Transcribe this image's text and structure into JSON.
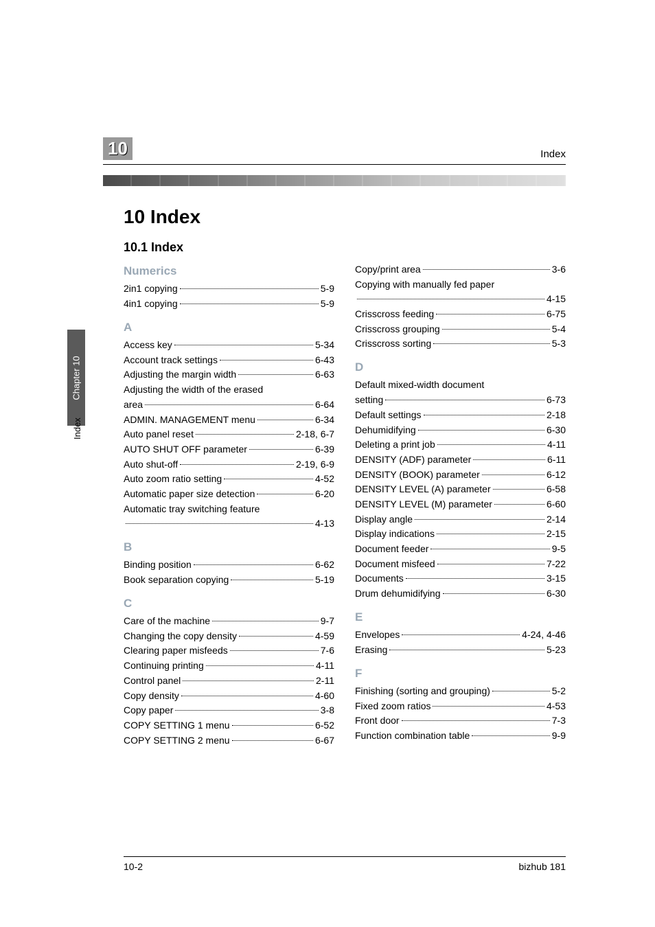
{
  "header": {
    "chapter_number": "10",
    "header_label": "Index"
  },
  "sidebar": {
    "tab_label": "Chapter 10",
    "side_label": "Index"
  },
  "title": "10    Index",
  "subtitle": "10.1    Index",
  "columns": {
    "left": [
      {
        "type": "head",
        "text": "Numerics"
      },
      {
        "type": "entry",
        "label": "2in1 copying",
        "page": "5-9"
      },
      {
        "type": "entry",
        "label": "4in1 copying",
        "page": "5-9"
      },
      {
        "type": "head",
        "text": "A"
      },
      {
        "type": "entry",
        "label": "Access key",
        "page": "5-34"
      },
      {
        "type": "entry",
        "label": "Account track settings",
        "page": "6-43"
      },
      {
        "type": "entry",
        "label": "Adjusting the margin width",
        "page": "6-63"
      },
      {
        "type": "wrap",
        "line1": "Adjusting the width of the erased",
        "line2label": "area",
        "page": "6-64"
      },
      {
        "type": "entry",
        "label": "ADMIN. MANAGEMENT menu",
        "page": "6-34"
      },
      {
        "type": "entry",
        "label": "Auto panel reset",
        "page": "2-18, 6-7"
      },
      {
        "type": "entry",
        "label": "AUTO SHUT OFF parameter",
        "page": "6-39"
      },
      {
        "type": "entry",
        "label": "Auto shut-off",
        "page": "2-19, 6-9"
      },
      {
        "type": "entry",
        "label": "Auto zoom ratio setting",
        "page": "4-52"
      },
      {
        "type": "entry",
        "label": "Automatic paper size detection",
        "page": "6-20"
      },
      {
        "type": "wrap",
        "line1": "Automatic tray switching feature",
        "line2label": "",
        "page": "4-13"
      },
      {
        "type": "head",
        "text": "B"
      },
      {
        "type": "entry",
        "label": "Binding position",
        "page": "6-62"
      },
      {
        "type": "entry",
        "label": "Book separation copying",
        "page": "5-19"
      },
      {
        "type": "head",
        "text": "C"
      },
      {
        "type": "entry",
        "label": "Care of the machine",
        "page": "9-7"
      },
      {
        "type": "entry",
        "label": "Changing the copy density",
        "page": "4-59"
      },
      {
        "type": "entry",
        "label": "Clearing paper misfeeds",
        "page": "7-6"
      },
      {
        "type": "entry",
        "label": "Continuing printing",
        "page": "4-11"
      },
      {
        "type": "entry",
        "label": "Control panel",
        "page": "2-11"
      },
      {
        "type": "entry",
        "label": "Copy density",
        "page": "4-60"
      },
      {
        "type": "entry",
        "label": "Copy paper",
        "page": "3-8"
      },
      {
        "type": "entry",
        "label": "COPY SETTING 1 menu",
        "page": "6-52"
      },
      {
        "type": "entry",
        "label": "COPY SETTING 2 menu",
        "page": "6-67"
      }
    ],
    "right": [
      {
        "type": "entry",
        "label": "Copy/print area",
        "page": "3-6"
      },
      {
        "type": "wrap",
        "line1": "Copying with manually fed paper",
        "line2label": "",
        "page": "4-15"
      },
      {
        "type": "entry",
        "label": "Crisscross feeding",
        "page": "6-75"
      },
      {
        "type": "entry",
        "label": "Crisscross grouping",
        "page": "5-4"
      },
      {
        "type": "entry",
        "label": "Crisscross sorting",
        "page": "5-3"
      },
      {
        "type": "head",
        "text": "D"
      },
      {
        "type": "wrap",
        "line1": "Default mixed-width document",
        "line2label": "setting",
        "page": "6-73"
      },
      {
        "type": "entry",
        "label": "Default settings",
        "page": "2-18"
      },
      {
        "type": "entry",
        "label": "Dehumidifying",
        "page": "6-30"
      },
      {
        "type": "entry",
        "label": "Deleting a print job",
        "page": "4-11"
      },
      {
        "type": "entry",
        "label": "DENSITY (ADF) parameter",
        "page": "6-11"
      },
      {
        "type": "entry",
        "label": "DENSITY (BOOK) parameter",
        "page": "6-12"
      },
      {
        "type": "entry",
        "label": "DENSITY LEVEL (A) parameter",
        "page": "6-58"
      },
      {
        "type": "entry",
        "label": "DENSITY LEVEL (M) parameter",
        "page": "6-60"
      },
      {
        "type": "entry",
        "label": "Display angle",
        "page": "2-14"
      },
      {
        "type": "entry",
        "label": "Display indications",
        "page": "2-15"
      },
      {
        "type": "entry",
        "label": "Document feeder",
        "page": "9-5"
      },
      {
        "type": "entry",
        "label": "Document misfeed",
        "page": "7-22"
      },
      {
        "type": "entry",
        "label": "Documents",
        "page": "3-15"
      },
      {
        "type": "entry",
        "label": "Drum dehumidifying",
        "page": "6-30"
      },
      {
        "type": "head",
        "text": "E"
      },
      {
        "type": "entry",
        "label": "Envelopes",
        "page": "4-24, 4-46"
      },
      {
        "type": "entry",
        "label": "Erasing",
        "page": "5-23"
      },
      {
        "type": "head",
        "text": "F"
      },
      {
        "type": "entry",
        "label": "Finishing (sorting and grouping)",
        "page": "5-2"
      },
      {
        "type": "entry",
        "label": "Fixed zoom ratios",
        "page": "4-53"
      },
      {
        "type": "entry",
        "label": "Front door",
        "page": "7-3"
      },
      {
        "type": "entry",
        "label": "Function combination table",
        "page": "9-9"
      }
    ]
  },
  "footer": {
    "page_number": "10-2",
    "product": "bizhub 181"
  }
}
